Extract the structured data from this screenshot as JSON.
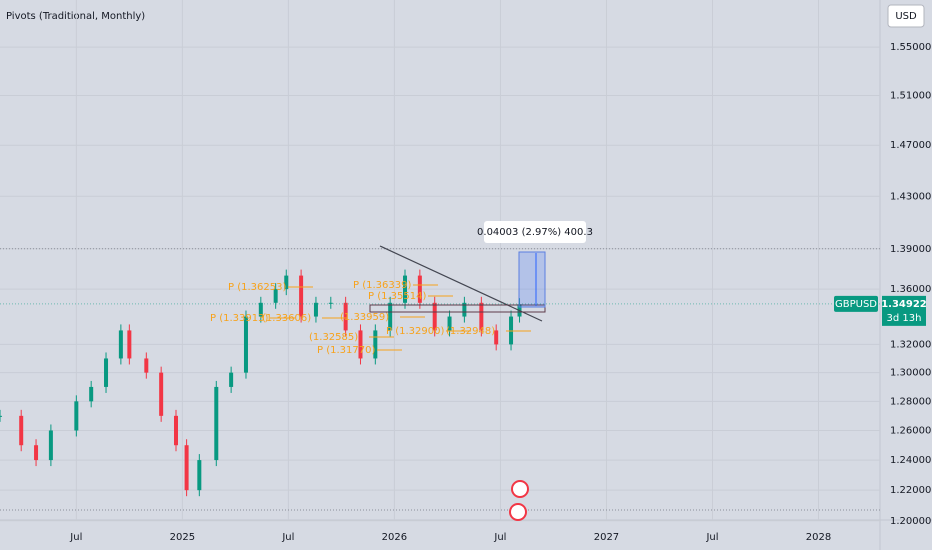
{
  "chart_data": {
    "type": "candlestick",
    "title": "Pivots (Traditional, Monthly)",
    "currency": "USD",
    "symbol": "GBPUSD",
    "last_price": {
      "value": 1.34922,
      "label": "1.34922"
    },
    "countdown": "3d 13h",
    "measure_label": "0.04003 (2.97%) 400.3",
    "pivot_labels": [
      "P (1.36253)",
      "P (1.33913)",
      "(1.33606)",
      "(1.32585)",
      "P (1.31770)",
      "P (1.36339)",
      "P (1.35514)",
      "(1.33959)",
      "P (1.32900)",
      "(1.32948)"
    ],
    "yscale": "log",
    "grid": true,
    "color_up": "#089981",
    "color_down": "#f23645",
    "x": [
      2024.14,
      2024.24,
      2024.31,
      2024.38,
      2024.5,
      2024.57,
      2024.64,
      2024.71,
      2024.75,
      2024.83,
      2024.9,
      2024.97,
      2025.02,
      2025.08,
      2025.16,
      2025.23,
      2025.3,
      2025.37,
      2025.44,
      2025.49,
      2025.56,
      2025.63,
      2025.7,
      2025.77,
      2025.84,
      2025.91,
      2025.98,
      2026.05,
      2026.12,
      2026.19,
      2026.26,
      2026.33,
      2026.41,
      2026.48,
      2026.55,
      2026.59
    ],
    "values": [
      1.27,
      1.25,
      1.24,
      1.26,
      1.28,
      1.29,
      1.31,
      1.33,
      1.31,
      1.3,
      1.27,
      1.25,
      1.22,
      1.24,
      1.29,
      1.3,
      1.34,
      1.35,
      1.36,
      1.37,
      1.34,
      1.35,
      1.35,
      1.33,
      1.31,
      1.33,
      1.35,
      1.37,
      1.35,
      1.33,
      1.34,
      1.35,
      1.33,
      1.32,
      1.34,
      1.349
    ],
    "xlim": [
      2024.14,
      2028.29
    ],
    "xticks": [
      {
        "value": 2024.5,
        "label": "Jul"
      },
      {
        "value": 2025,
        "label": "2025"
      },
      {
        "value": 2025.5,
        "label": "Jul"
      },
      {
        "value": 2026,
        "label": "2026"
      },
      {
        "value": 2026.5,
        "label": "Jul"
      },
      {
        "value": 2027,
        "label": "2027"
      },
      {
        "value": 2027.5,
        "label": "Jul"
      },
      {
        "value": 2028,
        "label": "2028"
      }
    ],
    "ylim": [
      1.207,
      1.59
    ],
    "yticks": [
      {
        "value": 1.55,
        "label": "1.55000"
      },
      {
        "value": 1.51,
        "label": "1.51000"
      },
      {
        "value": 1.47,
        "label": "1.47000"
      },
      {
        "value": 1.43,
        "label": "1.43000"
      },
      {
        "value": 1.39,
        "label": "1.39000"
      },
      {
        "value": 1.36,
        "label": "1.36000"
      },
      {
        "value": 1.32,
        "label": "1.32000"
      },
      {
        "value": 1.3,
        "label": "1.30000"
      },
      {
        "value": 1.28,
        "label": "1.28000"
      },
      {
        "value": 1.26,
        "label": "1.26000"
      },
      {
        "value": 1.24,
        "label": "1.24000"
      },
      {
        "value": 1.22,
        "label": "1.22000"
      },
      {
        "value": 1.2,
        "label": "1.20000"
      }
    ]
  }
}
